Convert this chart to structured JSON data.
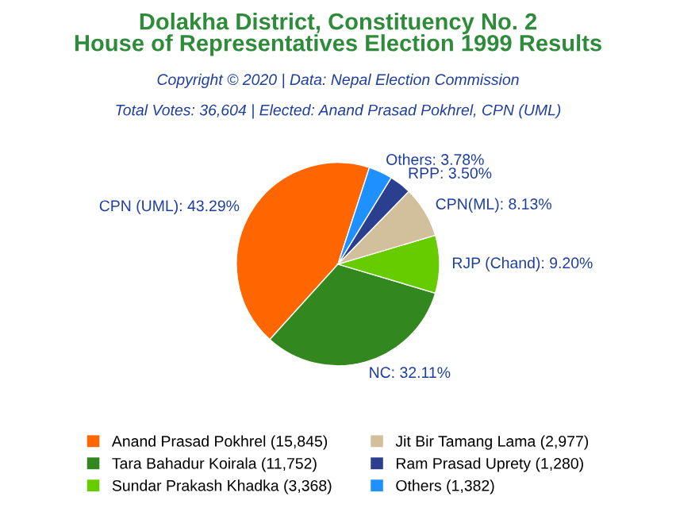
{
  "chart_data": {
    "type": "pie",
    "title": "Dolakha District, Constituency No. 2\nHouse of Representatives Election 1999 Results",
    "subtitle": "Copyright © 2020 | Data: Nepal Election Commission",
    "annotations": [
      "Total Votes: 36,604 | Elected: Anand Prasad Pokhrel, CPN (UML)"
    ],
    "categories": [
      "Anand Prasad Pokhrel (15,845)",
      "Tara Bahadur Koirala (11,752)",
      "Sundar Prakash Khadka (3,368)",
      "Jit Bir Tamang Lama (2,977)",
      "Ram Prasad Uprety (1,280)",
      "Others (1,382)"
    ],
    "values": [
      43.29,
      32.11,
      9.2,
      8.13,
      3.5,
      3.78
    ],
    "value_labels": [
      "CPN (UML): 43.29%",
      "NC: 32.11%",
      "RJP (Chand): 9.20%",
      "CPN(ML): 8.13%",
      "RPP: 3.50%",
      "Others: 3.78%"
    ],
    "colors": [
      "#ff6600",
      "#33871f",
      "#66cc00",
      "#d2c09c",
      "#2b3f8f",
      "#1e90ff"
    ],
    "legend": "bottom"
  }
}
